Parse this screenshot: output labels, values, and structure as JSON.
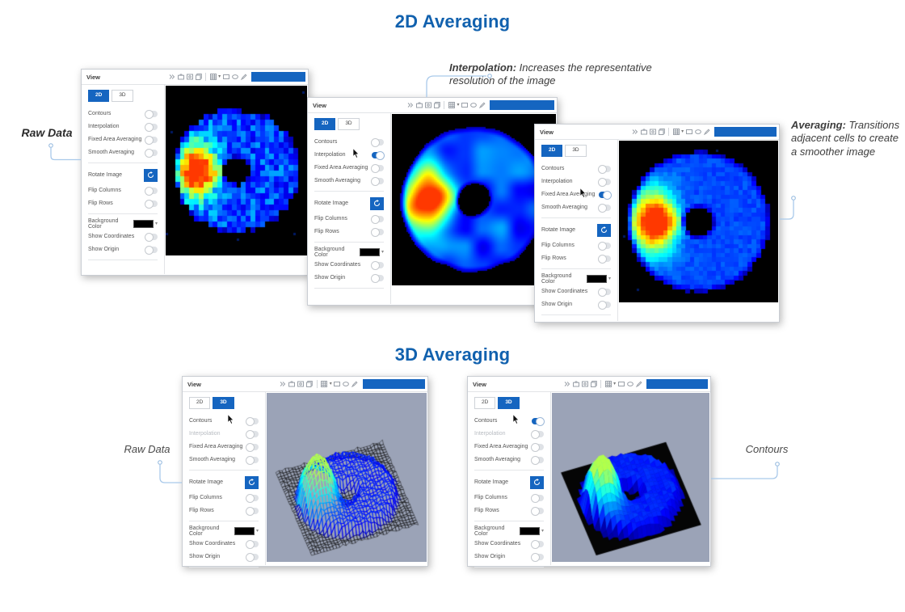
{
  "colors": {
    "accent": "#1565c0",
    "title_color": "#1161ae",
    "heatmap_background": "#000000",
    "scene_background": "#9ba3b7",
    "connector": "#a9c9ea"
  },
  "sections": {
    "top": {
      "title": "2D Averaging"
    },
    "bottom": {
      "title": "3D Averaging"
    }
  },
  "annotations": {
    "raw_data_2d": {
      "text": "Raw Data"
    },
    "interpolation": {
      "lead": "Interpolation:",
      "text": "Increases the representative resolution of the image"
    },
    "averaging": {
      "lead": "Averaging:",
      "text": "Transitions adjacent cells to create a smoother image"
    },
    "raw_data_3d": {
      "text": "Raw Data"
    },
    "contours_3d": {
      "text": "Contours"
    }
  },
  "window_template": {
    "title": "View",
    "tabs": [
      "2D",
      "3D"
    ],
    "toolbar_icons": [
      "skip-forward-icon",
      "camera-icon",
      "snapshot-icon",
      "window-icon",
      "grid-tool-icon",
      "grid-caret-icon",
      "rectangle-tool-icon",
      "ellipse-tool-icon",
      "pencil-tool-icon"
    ],
    "toggle_groups": {
      "display": [
        "Contours",
        "Interpolation",
        "Fixed Area Averaging",
        "Smooth Averaging"
      ],
      "transform_label": "Rotate Image",
      "flips": [
        "Flip Columns",
        "Flip Rows"
      ],
      "background_color": "Background Color",
      "background_swatch": "#000000",
      "shows": [
        "Show Coordinates",
        "Show Origin"
      ]
    }
  },
  "windows": [
    {
      "name": "2d-raw-data",
      "active_tab": "2D",
      "toggles_on": [],
      "toggles_disabled": [],
      "cursor_at": null,
      "viewport": "pixelated-donut-heatmap"
    },
    {
      "name": "2d-interpolation",
      "active_tab": "2D",
      "toggles_on": [
        "Interpolation"
      ],
      "toggles_disabled": [],
      "cursor_at": "Interpolation",
      "viewport": "smooth-donut-heatmap"
    },
    {
      "name": "2d-averaging",
      "active_tab": "2D",
      "toggles_on": [
        "Fixed Area Averaging"
      ],
      "toggles_disabled": [],
      "cursor_at": "Fixed Area Averaging",
      "viewport": "averaged-donut-heatmap"
    },
    {
      "name": "3d-raw-data",
      "active_tab": "3D",
      "toggles_on": [],
      "toggles_disabled": [
        "Interpolation"
      ],
      "cursor_at": "Contours",
      "viewport": "wireframe-3d-surface"
    },
    {
      "name": "3d-contours",
      "active_tab": "3D",
      "toggles_on": [
        "Contours"
      ],
      "toggles_disabled": [
        "Interpolation"
      ],
      "cursor_at": "Contours",
      "viewport": "filled-3d-surface"
    }
  ]
}
